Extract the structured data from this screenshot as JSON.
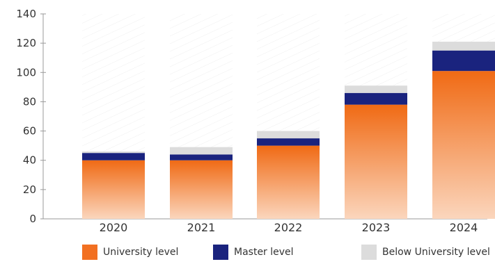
{
  "chart_data": {
    "type": "bar",
    "stacked": true,
    "categories": [
      "2020",
      "2021",
      "2022",
      "2023",
      "2024"
    ],
    "series": [
      {
        "name": "University level",
        "color": "#f27021",
        "values": [
          40,
          40,
          50,
          78,
          101
        ]
      },
      {
        "name": "Master level",
        "color": "#1a237e",
        "values": [
          5,
          4,
          5,
          8,
          14
        ]
      },
      {
        "name": "Below University level",
        "color": "#dcdcdc",
        "values": [
          1,
          5,
          5,
          5,
          6
        ]
      }
    ],
    "ylim": [
      0,
      140
    ],
    "yticks": [
      0,
      20,
      40,
      60,
      80,
      100,
      120,
      140
    ],
    "ytick_labels": [
      "0",
      "20",
      "40",
      "60",
      "80",
      "100",
      "120",
      "140"
    ],
    "title": "",
    "xlabel": "",
    "ylabel": "",
    "legend_position": "bottom",
    "grid": false
  }
}
